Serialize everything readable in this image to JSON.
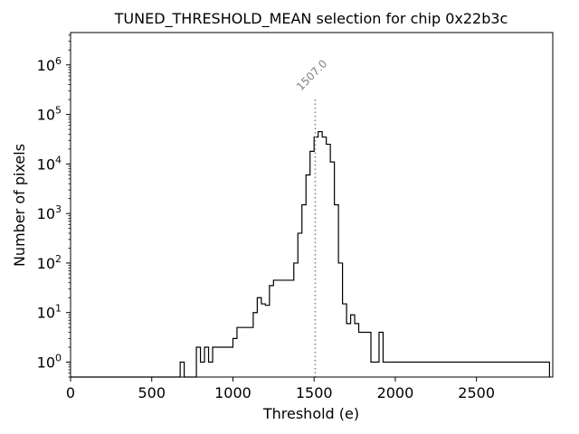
{
  "chart_data": {
    "type": "histogram-step",
    "title": "TUNED_THRESHOLD_MEAN selection for chip 0x22b3c",
    "xlabel": "Threshold (e)",
    "ylabel": "Number of pixels",
    "xlim": [
      0,
      2970
    ],
    "ylim": [
      0.5,
      4500000
    ],
    "yscale": "log",
    "x_ticks": [
      0,
      500,
      1000,
      1500,
      2000,
      2500
    ],
    "y_ticks": [
      {
        "value": 1,
        "base": "10",
        "exp": "0"
      },
      {
        "value": 10,
        "base": "10",
        "exp": "1"
      },
      {
        "value": 100,
        "base": "10",
        "exp": "2"
      },
      {
        "value": 1000,
        "base": "10",
        "exp": "3"
      },
      {
        "value": 10000,
        "base": "10",
        "exp": "4"
      },
      {
        "value": 100000,
        "base": "10",
        "exp": "5"
      },
      {
        "value": 1000000,
        "base": "10",
        "exp": "6"
      }
    ],
    "bin_width": 25,
    "bin_start": 0,
    "counts": [
      0,
      0,
      0,
      0,
      0,
      0,
      0,
      0,
      0,
      0,
      0,
      0,
      0,
      0,
      0,
      0,
      0,
      0,
      0,
      0,
      0,
      0,
      0,
      0,
      0,
      0,
      0,
      1,
      0,
      0,
      0,
      2,
      1,
      2,
      1,
      2,
      2,
      2,
      2,
      2,
      3,
      5,
      5,
      5,
      5,
      10,
      20,
      15,
      14,
      35,
      45,
      45,
      45,
      45,
      45,
      100,
      400,
      1500,
      6000,
      18000,
      35000,
      45000,
      35000,
      25000,
      11000,
      1500,
      100,
      15,
      6,
      9,
      6,
      4,
      4,
      4,
      1,
      1,
      4,
      1,
      1,
      1,
      1,
      1,
      1,
      1,
      1,
      1,
      1,
      1,
      1,
      1,
      1,
      1,
      1,
      1,
      1,
      1,
      1,
      1,
      1,
      1,
      1,
      1,
      1,
      1,
      1,
      1,
      1,
      1,
      1,
      1,
      1,
      1,
      1,
      1,
      1,
      1,
      1,
      1
    ],
    "marker_value": 1507.0,
    "marker_label": "1507.0",
    "marker_color": "#808080",
    "line_color": "#000000"
  }
}
